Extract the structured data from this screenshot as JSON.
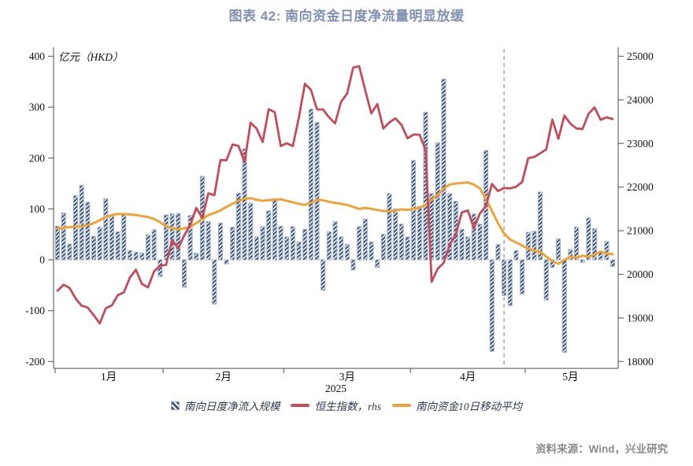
{
  "title": "图表 42: 南向资金日度净流量明显放缓",
  "footer": {
    "text": "资料来源：Wind，兴业研究"
  },
  "legend": [
    {
      "label": "南向日度净流入规模",
      "marker": "hatch-square"
    },
    {
      "label": "恒生指数，rhs",
      "marker": "red-line"
    },
    {
      "label": "南向资金10日移动平均",
      "marker": "orange-line"
    }
  ],
  "chart_data": {
    "type": "bar",
    "subtype": "daily bars with two overlay lines",
    "unit_label": "亿元（HKD）",
    "x_year_label": "2025",
    "left_axis": {
      "ticks": [
        400,
        300,
        200,
        100,
        0,
        -100,
        -200
      ],
      "label": "亿元（HKD）"
    },
    "right_axis": {
      "ticks": [
        25000,
        24000,
        23000,
        22000,
        21000,
        20000,
        19000,
        18000
      ]
    },
    "months": [
      {
        "label": "1月",
        "days": 18
      },
      {
        "label": "2月",
        "days": 20
      },
      {
        "label": "3月",
        "days": 21
      },
      {
        "label": "4月",
        "days": 19
      },
      {
        "label": "5月",
        "days": 15
      }
    ],
    "dashed_line_day_index": 74,
    "colors": {
      "bar_hatch": "#3c5478",
      "bar_border": "#9dadc8",
      "hsi_line": "#c64a57",
      "ma_line": "#f1a235",
      "dashed": "#9a9a9a",
      "axis": "#6b6b6b",
      "title": "#8191b2"
    },
    "series": [
      {
        "name": "南向日度净流入规模",
        "type": "bar",
        "axis": "left",
        "values": [
          66,
          92,
          31,
          126,
          146,
          113,
          46,
          64,
          120,
          86,
          55,
          90,
          18,
          15,
          13,
          49,
          59,
          -33,
          88,
          90,
          91,
          -54,
          87,
          13,
          164,
          75,
          -87,
          72,
          -8,
          64,
          131,
          218,
          111,
          45,
          65,
          96,
          120,
          66,
          45,
          65,
          35,
          60,
          296,
          270,
          -60,
          55,
          75,
          45,
          30,
          -20,
          65,
          80,
          35,
          -15,
          50,
          130,
          100,
          70,
          45,
          195,
          105,
          290,
          130,
          230,
          355,
          130,
          115,
          60,
          45,
          90,
          70,
          215,
          -180,
          30,
          -70,
          -90,
          18,
          -67,
          54,
          56,
          133,
          -79,
          -15,
          41,
          -182,
          20,
          64,
          -5,
          82,
          61,
          15,
          36,
          -13
        ]
      },
      {
        "name": "恒生指数，rhs",
        "type": "line",
        "axis": "right",
        "values": [
          19623,
          19760,
          19688,
          19447,
          19279,
          19240,
          19064,
          18874,
          19219,
          19286,
          19523,
          19584,
          19925,
          20106,
          19778,
          19701,
          20066,
          20197,
          20217,
          20789,
          20597,
          20891,
          21133,
          21521,
          21294,
          21857,
          21814,
          22620,
          22616,
          22977,
          22944,
          22577,
          23477,
          23341,
          23034,
          23787,
          23718,
          22941,
          23006,
          22941,
          23594,
          24369,
          24231,
          23783,
          23782,
          23600,
          23462,
          23959,
          24145,
          24740,
          24771,
          24219,
          23689,
          23905,
          23344,
          23483,
          23578,
          23426,
          23119,
          23206,
          23202,
          22849,
          19828,
          20127,
          20264,
          20681,
          20914,
          21417,
          21466,
          21056,
          21395,
          21562,
          22072,
          21909,
          21980,
          21971,
          22008,
          22119,
          22662,
          22691,
          22775,
          22867,
          23549,
          23108,
          23640,
          23453,
          23345,
          23332,
          23681,
          23827,
          23544,
          23601,
          23560
        ]
      },
      {
        "name": "南向资金10日移动平均",
        "type": "line",
        "axis": "left",
        "values": [
          62,
          63,
          64,
          65,
          66,
          68,
          72,
          78,
          84,
          88,
          90,
          90,
          89,
          88,
          86,
          84,
          80,
          74,
          66,
          62,
          60,
          62,
          65,
          72,
          80,
          88,
          92,
          97,
          104,
          110,
          116,
          120,
          121,
          118,
          116,
          117,
          118,
          119,
          116,
          113,
          110,
          108,
          112,
          118,
          117,
          114,
          112,
          110,
          108,
          104,
          100,
          102,
          100,
          98,
          96,
          95,
          97,
          99,
          98,
          100,
          102,
          108,
          118,
          128,
          140,
          148,
          150,
          151,
          152,
          148,
          140,
          120,
          96,
          72,
          52,
          40,
          34,
          28,
          22,
          18,
          16,
          6,
          -2,
          -8,
          0,
          6,
          4,
          8,
          6,
          10,
          16,
          12,
          11
        ]
      }
    ]
  }
}
